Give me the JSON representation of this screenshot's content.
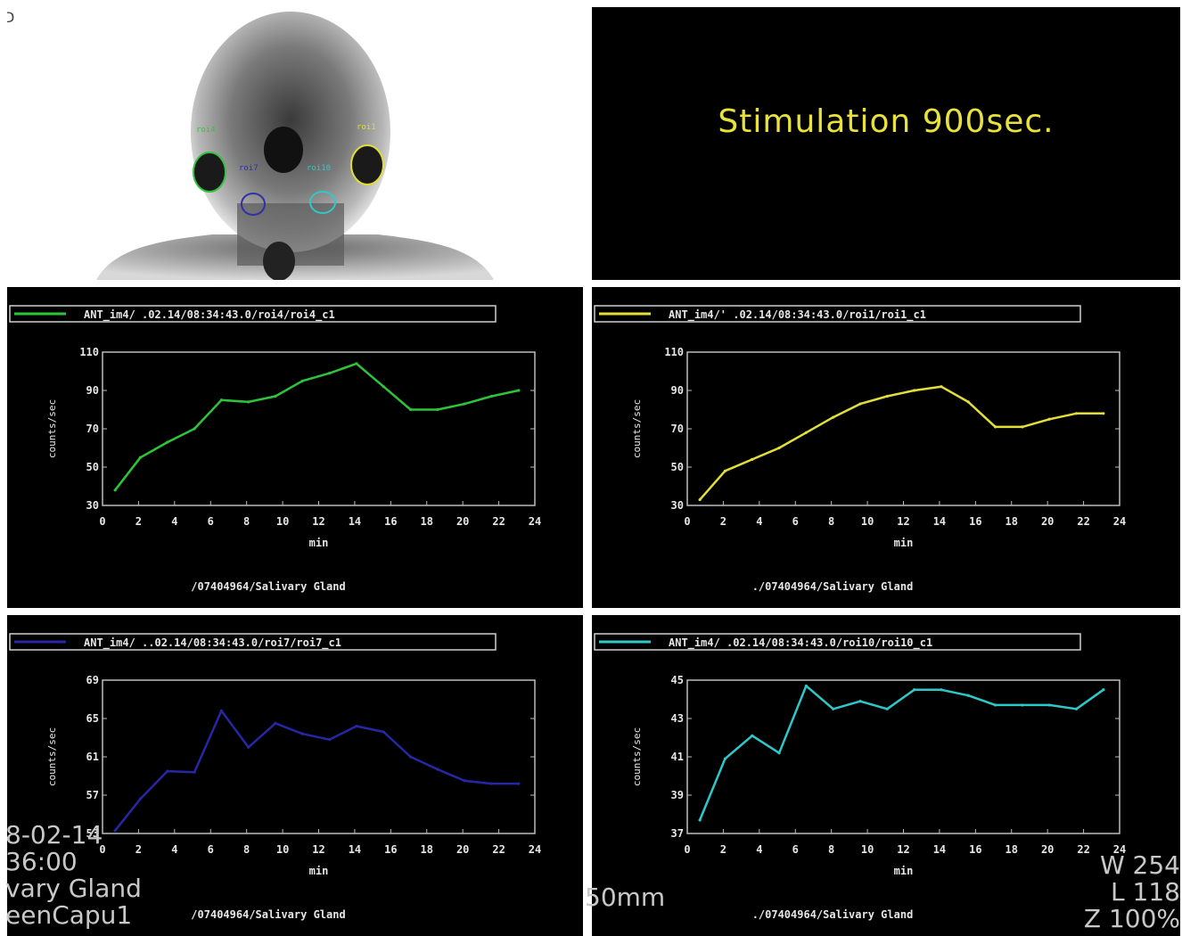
{
  "scan": {
    "corner_label": "D",
    "roi_labels": [
      {
        "text": "roi4",
        "color": "#34c240"
      },
      {
        "text": "roi1",
        "color": "#e0dc3a"
      },
      {
        "text": "roi7",
        "color": "#3030a8"
      },
      {
        "text": "roi10",
        "color": "#30c8c8"
      }
    ]
  },
  "stimulation": {
    "text": "Stimulation 900sec."
  },
  "overlay": {
    "left_lines": [
      "8-02-14",
      "36:00",
      "vary Gland",
      "eenCapu1"
    ],
    "center_text": "50mm",
    "right_lines": [
      "W 254",
      "L 118",
      "Z 100%"
    ]
  },
  "chart_data": [
    {
      "type": "line",
      "legend": "ANT_im4/      .02.14/08:34:43.0/roi4/roi4_c1",
      "color": "#2ec43a",
      "xlabel": "min",
      "ylabel": "counts/sec",
      "xlim": [
        0,
        24
      ],
      "ylim": [
        30,
        110
      ],
      "xticks": [
        0,
        2,
        4,
        6,
        8,
        10,
        12,
        14,
        16,
        18,
        20,
        22,
        24
      ],
      "yticks": [
        30,
        50,
        70,
        90,
        110
      ],
      "footer": "/07404964/Salivary Gland",
      "x": [
        0.7,
        2.1,
        3.6,
        5.1,
        6.6,
        8.1,
        9.6,
        11.1,
        12.6,
        14.1,
        15.6,
        17.1,
        18.6,
        20.1,
        21.6,
        23.1
      ],
      "y": [
        38,
        55,
        63,
        70,
        85,
        84,
        87,
        95,
        99,
        104,
        92,
        80,
        80,
        83,
        87,
        90
      ]
    },
    {
      "type": "line",
      "legend": "ANT_im4/'     .02.14/08:34:43.0/roi1/roi1_c1",
      "color": "#e3de3a",
      "xlabel": "min",
      "ylabel": "counts/sec",
      "xlim": [
        0,
        24
      ],
      "ylim": [
        30,
        110
      ],
      "xticks": [
        0,
        2,
        4,
        6,
        8,
        10,
        12,
        14,
        16,
        18,
        20,
        22,
        24
      ],
      "yticks": [
        30,
        50,
        70,
        90,
        110
      ],
      "footer": "./07404964/Salivary Gland",
      "x": [
        0.7,
        2.1,
        3.6,
        5.1,
        6.6,
        8.1,
        9.6,
        11.1,
        12.6,
        14.1,
        15.6,
        17.1,
        18.6,
        20.1,
        21.6,
        23.1
      ],
      "y": [
        33,
        48,
        54,
        60,
        68,
        76,
        83,
        87,
        90,
        92,
        84,
        71,
        71,
        75,
        78,
        78
      ]
    },
    {
      "type": "line",
      "legend": "ANT_im4/      ..02.14/08:34:43.0/roi7/roi7_c1",
      "color": "#2727a6",
      "xlabel": "min",
      "ylabel": "counts/sec",
      "xlim": [
        0,
        24
      ],
      "ylim": [
        53,
        69
      ],
      "xticks": [
        0,
        2,
        4,
        6,
        8,
        10,
        12,
        14,
        16,
        18,
        20,
        22,
        24
      ],
      "yticks": [
        53,
        57,
        61,
        65,
        69
      ],
      "footer": "/07404964/Salivary Gland",
      "x": [
        0.7,
        2.1,
        3.6,
        5.1,
        6.6,
        8.1,
        9.6,
        11.1,
        12.6,
        14.1,
        15.6,
        17.1,
        18.6,
        20.1,
        21.6,
        23.1
      ],
      "y": [
        53.3,
        56.6,
        59.5,
        59.4,
        65.8,
        62.0,
        64.5,
        63.4,
        62.8,
        64.2,
        63.6,
        61.0,
        59.7,
        58.5,
        58.2,
        58.2
      ]
    },
    {
      "type": "line",
      "legend": "ANT_im4/      .02.14/08:34:43.0/roi10/roi10_c1",
      "color": "#2fc8c8",
      "xlabel": "min",
      "ylabel": "counts/sec",
      "xlim": [
        0,
        24
      ],
      "ylim": [
        37,
        45
      ],
      "xticks": [
        0,
        2,
        4,
        6,
        8,
        10,
        12,
        14,
        16,
        18,
        20,
        22,
        24
      ],
      "yticks": [
        37,
        39,
        41,
        43,
        45
      ],
      "footer": "./07404964/Salivary Gland",
      "x": [
        0.7,
        2.1,
        3.6,
        5.1,
        6.6,
        8.1,
        9.6,
        11.1,
        12.6,
        14.1,
        15.6,
        17.1,
        18.6,
        20.1,
        21.6,
        23.1
      ],
      "y": [
        37.7,
        40.9,
        42.1,
        41.2,
        44.7,
        43.5,
        43.9,
        43.5,
        44.5,
        44.5,
        44.2,
        43.7,
        43.7,
        43.7,
        43.5,
        44.5
      ]
    }
  ]
}
